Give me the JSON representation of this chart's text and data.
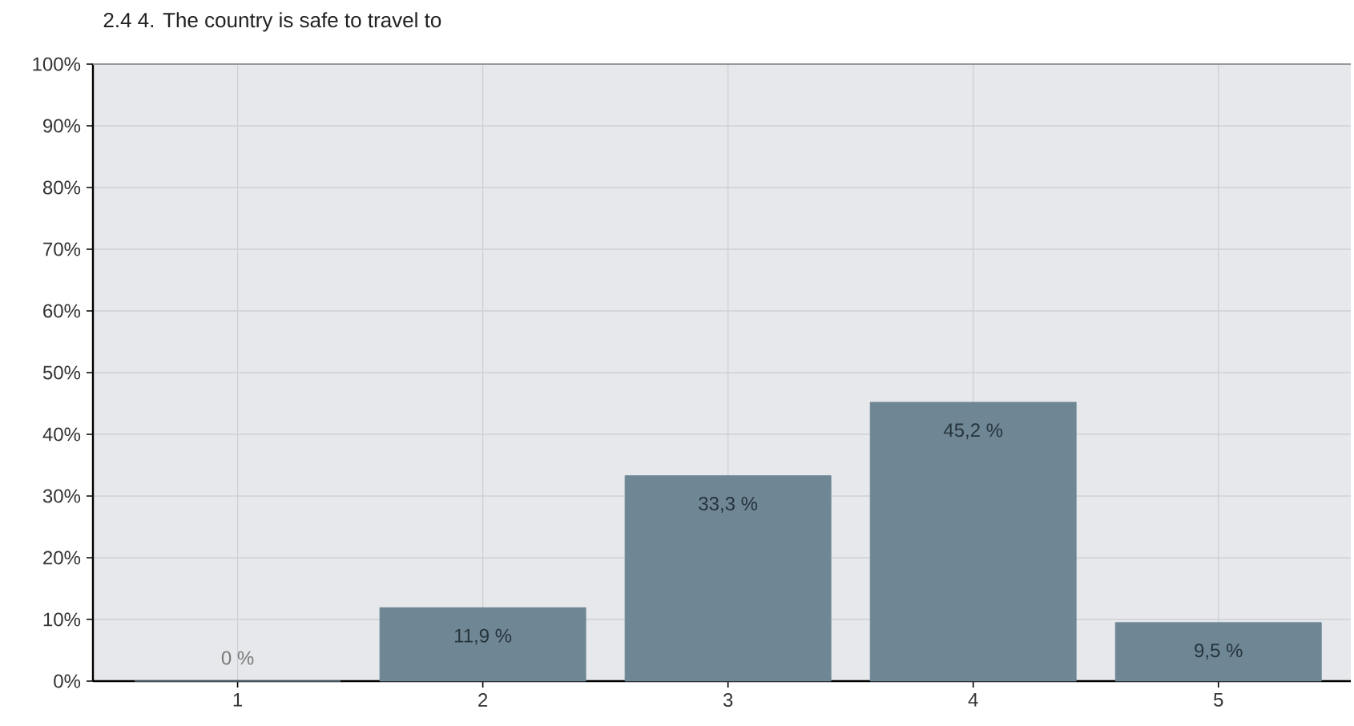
{
  "chart_data": {
    "type": "bar",
    "title": "2.4 4. The country is safe to travel to",
    "categories": [
      "1",
      "2",
      "3",
      "4",
      "5"
    ],
    "values": [
      0,
      11.9,
      33.3,
      45.2,
      9.5
    ],
    "value_labels": [
      "0 %",
      "11,9 %",
      "33,3 %",
      "45,2 %",
      "9,5 %"
    ],
    "color": "#6f8795",
    "ylim": [
      0,
      100
    ],
    "yticks": [
      {
        "value": 0,
        "label": "0%"
      },
      {
        "value": 10,
        "label": "10%"
      },
      {
        "value": 20,
        "label": "20%"
      },
      {
        "value": 30,
        "label": "30%"
      },
      {
        "value": 40,
        "label": "40%"
      },
      {
        "value": 50,
        "label": "50%"
      },
      {
        "value": 60,
        "label": "60%"
      },
      {
        "value": 70,
        "label": "70%"
      },
      {
        "value": 80,
        "label": "80%"
      },
      {
        "value": 90,
        "label": "90%"
      },
      {
        "value": 100,
        "label": "100%"
      }
    ],
    "grid": true
  }
}
